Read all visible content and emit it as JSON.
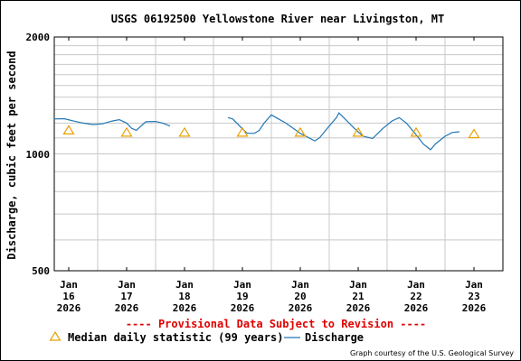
{
  "chart_data": {
    "type": "line",
    "title": "USGS 06192500 Yellowstone River near Livingston, MT",
    "ylabel": "Discharge, cubic feet per second",
    "xlabel": "",
    "y_scale": "log",
    "ylim": [
      500,
      2000
    ],
    "y_ticks": [
      "2000",
      "1000",
      "500"
    ],
    "grid": true,
    "x_ticks": [
      {
        "line1": "Jan",
        "line2": "16",
        "line3": "2026"
      },
      {
        "line1": "Jan",
        "line2": "17",
        "line3": "2026"
      },
      {
        "line1": "Jan",
        "line2": "18",
        "line3": "2026"
      },
      {
        "line1": "Jan",
        "line2": "19",
        "line3": "2026"
      },
      {
        "line1": "Jan",
        "line2": "20",
        "line3": "2026"
      },
      {
        "line1": "Jan",
        "line2": "21",
        "line3": "2026"
      },
      {
        "line1": "Jan",
        "line2": "22",
        "line3": "2026"
      },
      {
        "line1": "Jan",
        "line2": "23",
        "line3": "2026"
      }
    ],
    "xlim": [
      "2026-01-15 18:00",
      "2026-01-23 12:00"
    ],
    "series": [
      {
        "name": "Discharge",
        "color": "#1f77b4",
        "segments": [
          [
            [
              "2026-01-15 18:00",
              1230
            ],
            [
              "2026-01-15 22:00",
              1232
            ],
            [
              "2026-01-16 02:00",
              1215
            ],
            [
              "2026-01-16 06:00",
              1200
            ],
            [
              "2026-01-16 10:00",
              1190
            ],
            [
              "2026-01-16 14:00",
              1195
            ],
            [
              "2026-01-16 18:00",
              1215
            ],
            [
              "2026-01-16 21:00",
              1225
            ],
            [
              "2026-01-17 00:00",
              1200
            ],
            [
              "2026-01-17 02:00",
              1165
            ],
            [
              "2026-01-17 04:00",
              1150
            ],
            [
              "2026-01-17 06:00",
              1180
            ],
            [
              "2026-01-17 08:00",
              1210
            ],
            [
              "2026-01-17 12:00",
              1212
            ],
            [
              "2026-01-17 15:00",
              1200
            ],
            [
              "2026-01-17 18:00",
              1180
            ]
          ],
          [
            [
              "2026-01-18 18:00",
              1240
            ],
            [
              "2026-01-18 20:00",
              1230
            ],
            [
              "2026-01-19 00:00",
              1160
            ],
            [
              "2026-01-19 02:00",
              1130
            ],
            [
              "2026-01-19 05:00",
              1130
            ],
            [
              "2026-01-19 07:00",
              1150
            ],
            [
              "2026-01-19 09:00",
              1200
            ],
            [
              "2026-01-19 12:00",
              1260
            ],
            [
              "2026-01-19 14:00",
              1240
            ],
            [
              "2026-01-19 18:00",
              1200
            ],
            [
              "2026-01-20 00:00",
              1130
            ],
            [
              "2026-01-20 06:00",
              1080
            ],
            [
              "2026-01-20 08:00",
              1100
            ],
            [
              "2026-01-20 12:00",
              1180
            ],
            [
              "2026-01-20 15:00",
              1240
            ],
            [
              "2026-01-20 16:00",
              1275
            ],
            [
              "2026-01-20 18:00",
              1240
            ],
            [
              "2026-01-20 22:00",
              1170
            ],
            [
              "2026-01-21 02:00",
              1110
            ],
            [
              "2026-01-21 06:00",
              1095
            ],
            [
              "2026-01-21 10:00",
              1160
            ],
            [
              "2026-01-21 14:00",
              1215
            ],
            [
              "2026-01-21 17:00",
              1240
            ],
            [
              "2026-01-21 20:00",
              1200
            ],
            [
              "2026-01-22 00:00",
              1120
            ],
            [
              "2026-01-22 03:00",
              1060
            ],
            [
              "2026-01-22 06:00",
              1025
            ],
            [
              "2026-01-22 08:00",
              1060
            ],
            [
              "2026-01-22 12:00",
              1110
            ],
            [
              "2026-01-22 15:00",
              1135
            ],
            [
              "2026-01-22 18:00",
              1140
            ]
          ]
        ]
      }
    ],
    "markers": {
      "name": "Median daily statistic (99 years)",
      "color": "#e8a000",
      "points": [
        [
          "2026-01-16 00:00",
          1150
        ],
        [
          "2026-01-17 00:00",
          1135
        ],
        [
          "2026-01-18 00:00",
          1135
        ],
        [
          "2026-01-19 00:00",
          1135
        ],
        [
          "2026-01-20 00:00",
          1135
        ],
        [
          "2026-01-21 00:00",
          1135
        ],
        [
          "2026-01-22 00:00",
          1135
        ],
        [
          "2026-01-23 00:00",
          1125
        ]
      ]
    },
    "legend": {
      "position": "bottom",
      "median_label": "Median daily statistic (99 years)",
      "discharge_label": "Discharge"
    },
    "provisional": "---- Provisional Data Subject to Revision ----",
    "credit": "Graph courtesy of the U.S. Geological Survey"
  }
}
